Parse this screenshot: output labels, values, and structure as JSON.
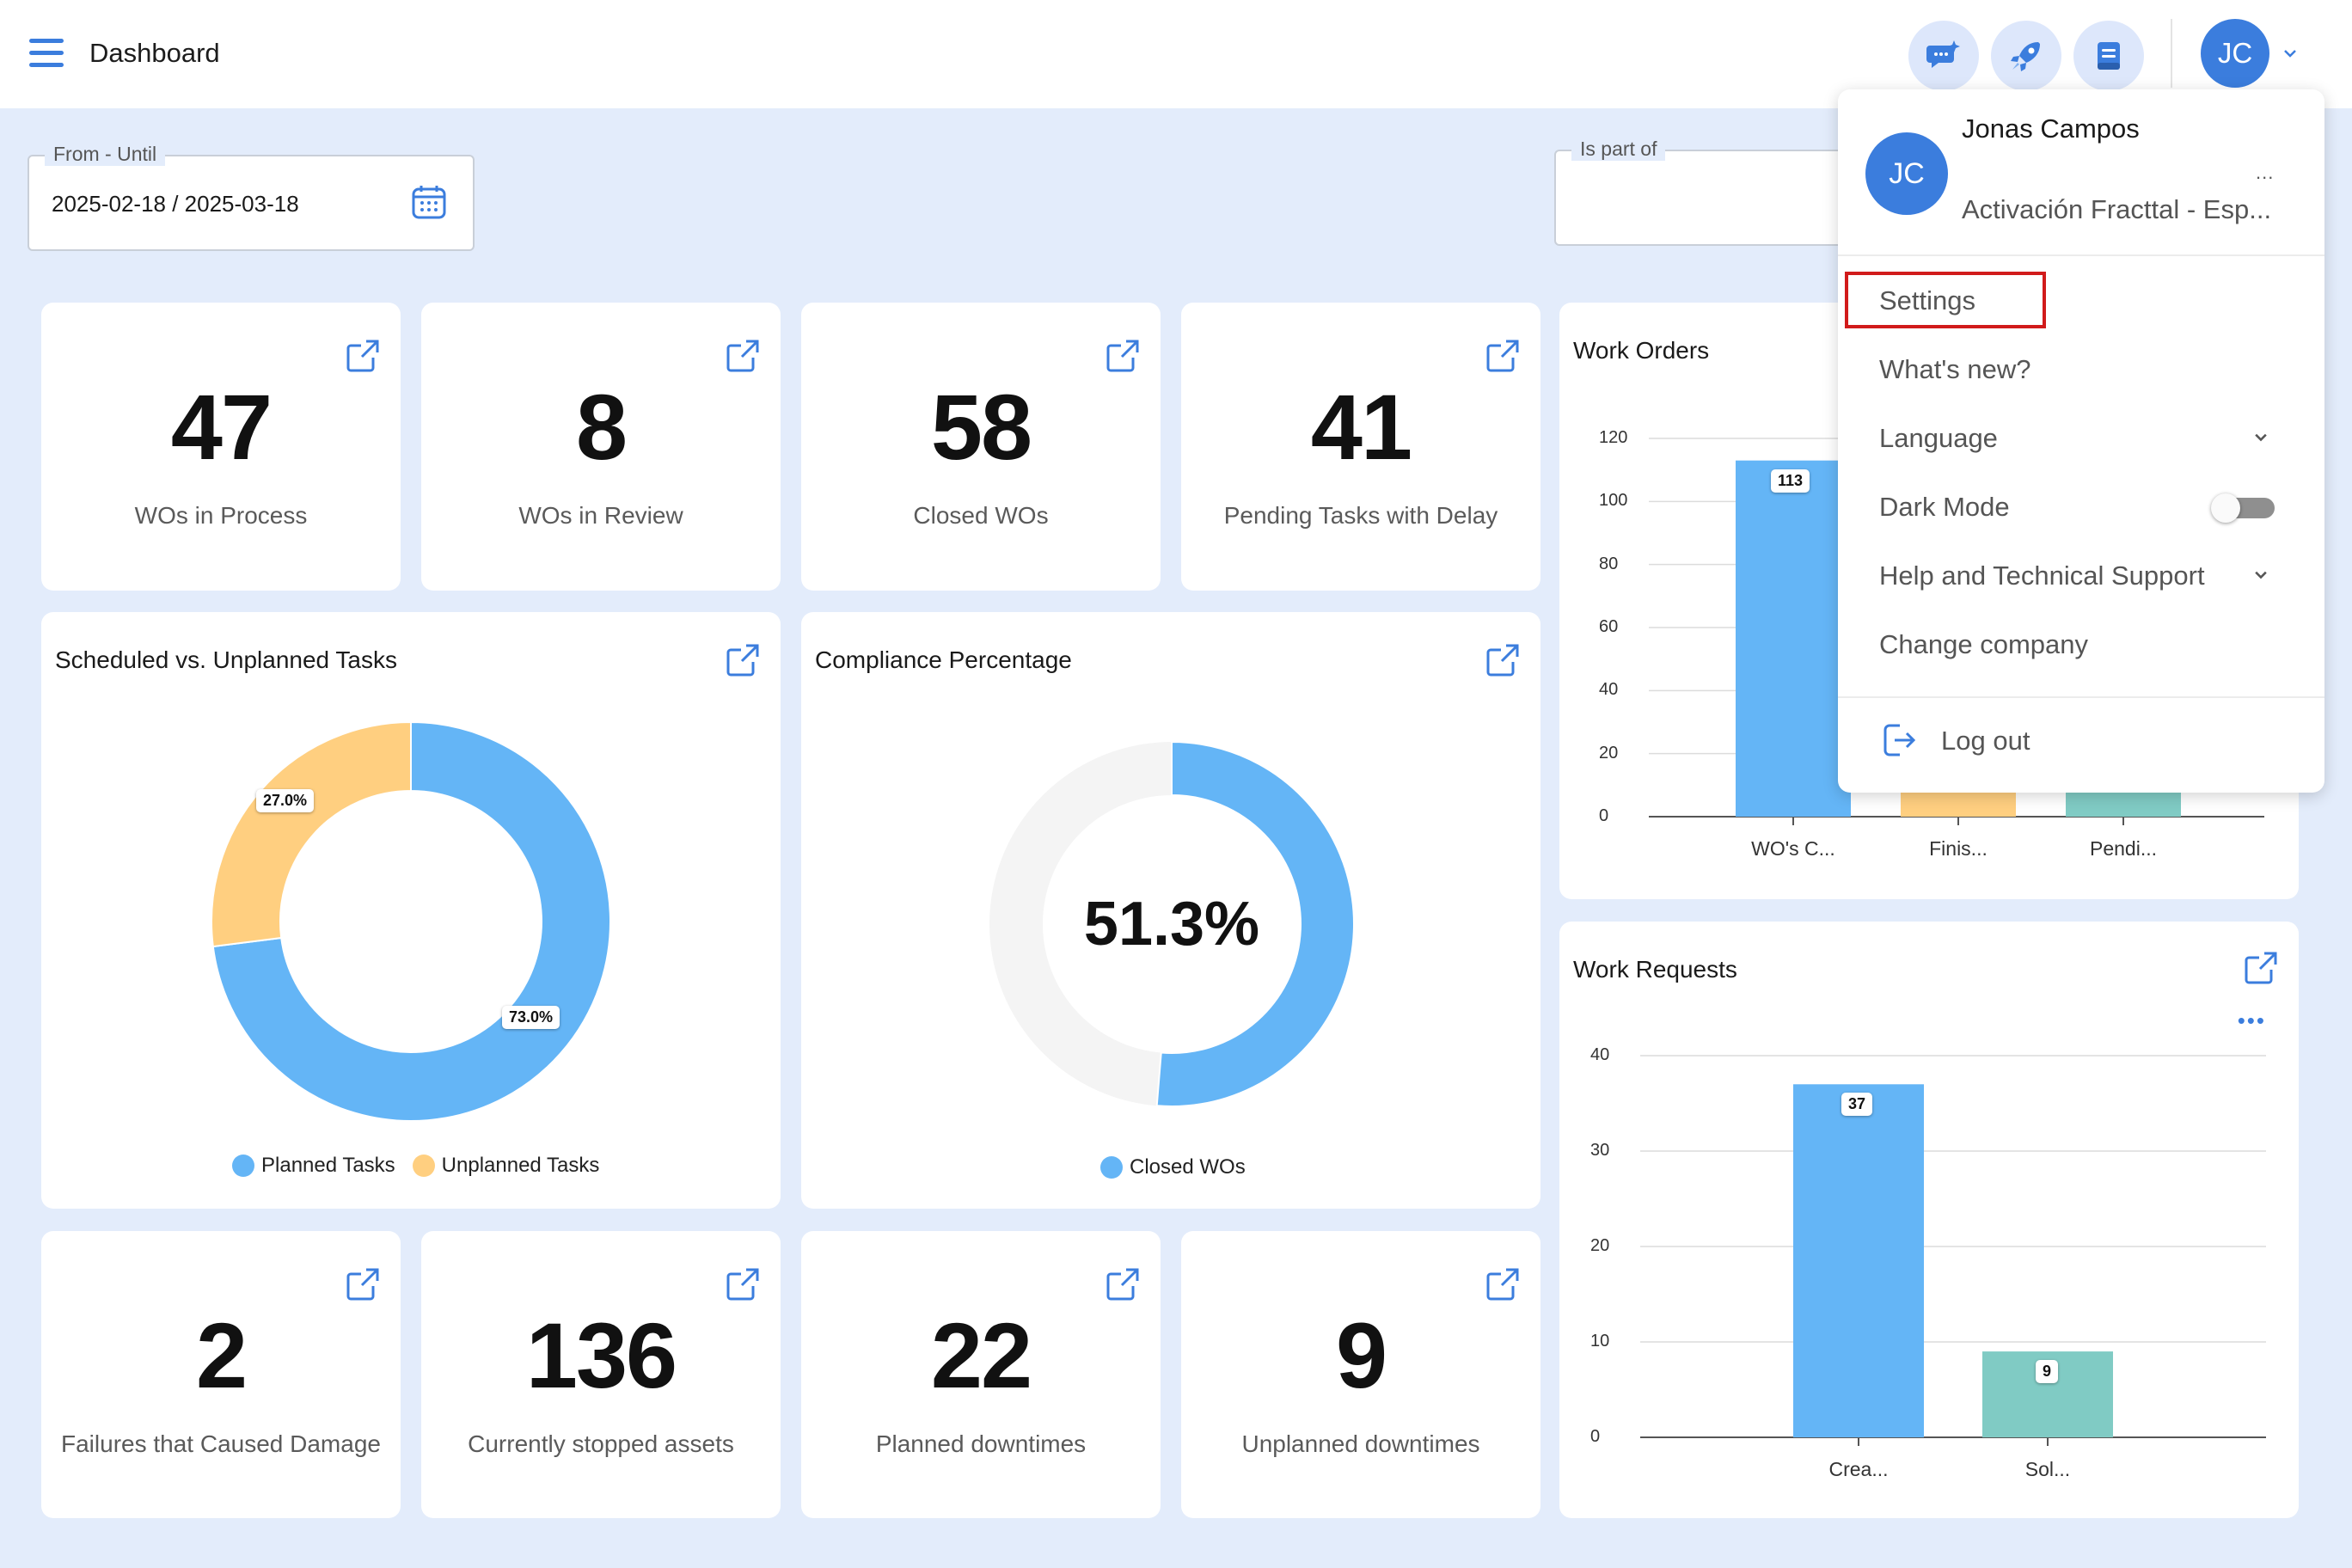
{
  "header": {
    "title": "Dashboard",
    "icons": [
      "chat-sparkle-icon",
      "rocket-icon",
      "document-icon"
    ],
    "user_initials": "JC"
  },
  "filters": {
    "date_label": "From - Until",
    "date_value": "2025-02-18 / 2025-03-18",
    "part_of_label": "Is part of"
  },
  "kpis_top": [
    {
      "value": "47",
      "label": "WOs in Process"
    },
    {
      "value": "8",
      "label": "WOs in Review"
    },
    {
      "value": "58",
      "label": "Closed WOs"
    },
    {
      "value": "41",
      "label": "Pending Tasks with Delay"
    }
  ],
  "kpis_bottom": [
    {
      "value": "2",
      "label": "Failures that Caused Damage"
    },
    {
      "value": "136",
      "label": "Currently stopped assets"
    },
    {
      "value": "22",
      "label": "Planned downtimes"
    },
    {
      "value": "9",
      "label": "Unplanned downtimes"
    }
  ],
  "colors": {
    "accent": "#3b7ddd",
    "blue_series": "#64b5f6",
    "orange_series": "#ffcf80",
    "teal_series": "#80cbc4",
    "highlight": "#d11b1b"
  },
  "chart_data": [
    {
      "type": "pie",
      "title": "Scheduled vs. Unplanned Tasks",
      "categories": [
        "Planned Tasks",
        "Unplanned Tasks"
      ],
      "values": [
        73.0,
        27.0
      ],
      "labels": [
        "73.0%",
        "27.0%"
      ],
      "legend": "bottom"
    },
    {
      "type": "pie",
      "title": "Compliance Percentage",
      "categories": [
        "Closed WOs"
      ],
      "values": [
        51.3
      ],
      "center_label": "51.3%",
      "legend": "bottom"
    },
    {
      "type": "bar",
      "title": "Work Orders",
      "categories": [
        "WO's C...",
        "Finis...",
        "Pendi..."
      ],
      "values": [
        113,
        20,
        20
      ],
      "labels": [
        "113",
        "",
        ""
      ],
      "ylim": [
        0,
        120
      ],
      "yticks": [
        "120",
        "100",
        "80",
        "60",
        "40",
        "20",
        "0"
      ],
      "grid": true
    },
    {
      "type": "bar",
      "title": "Work Requests",
      "categories": [
        "Crea...",
        "Sol..."
      ],
      "values": [
        37,
        9
      ],
      "labels": [
        "37",
        "9"
      ],
      "ylim": [
        0,
        40
      ],
      "yticks": [
        "40",
        "30",
        "20",
        "10",
        "0"
      ],
      "grid": true
    }
  ],
  "user_menu": {
    "name": "Jonas Campos",
    "company": "Activación Fracttal - Esp...",
    "more": "...",
    "items": [
      {
        "label": "Settings"
      },
      {
        "label": "What's new?"
      },
      {
        "label": "Language"
      },
      {
        "label": "Dark Mode"
      },
      {
        "label": "Help and Technical Support"
      },
      {
        "label": "Change company"
      }
    ],
    "logout": "Log out"
  }
}
